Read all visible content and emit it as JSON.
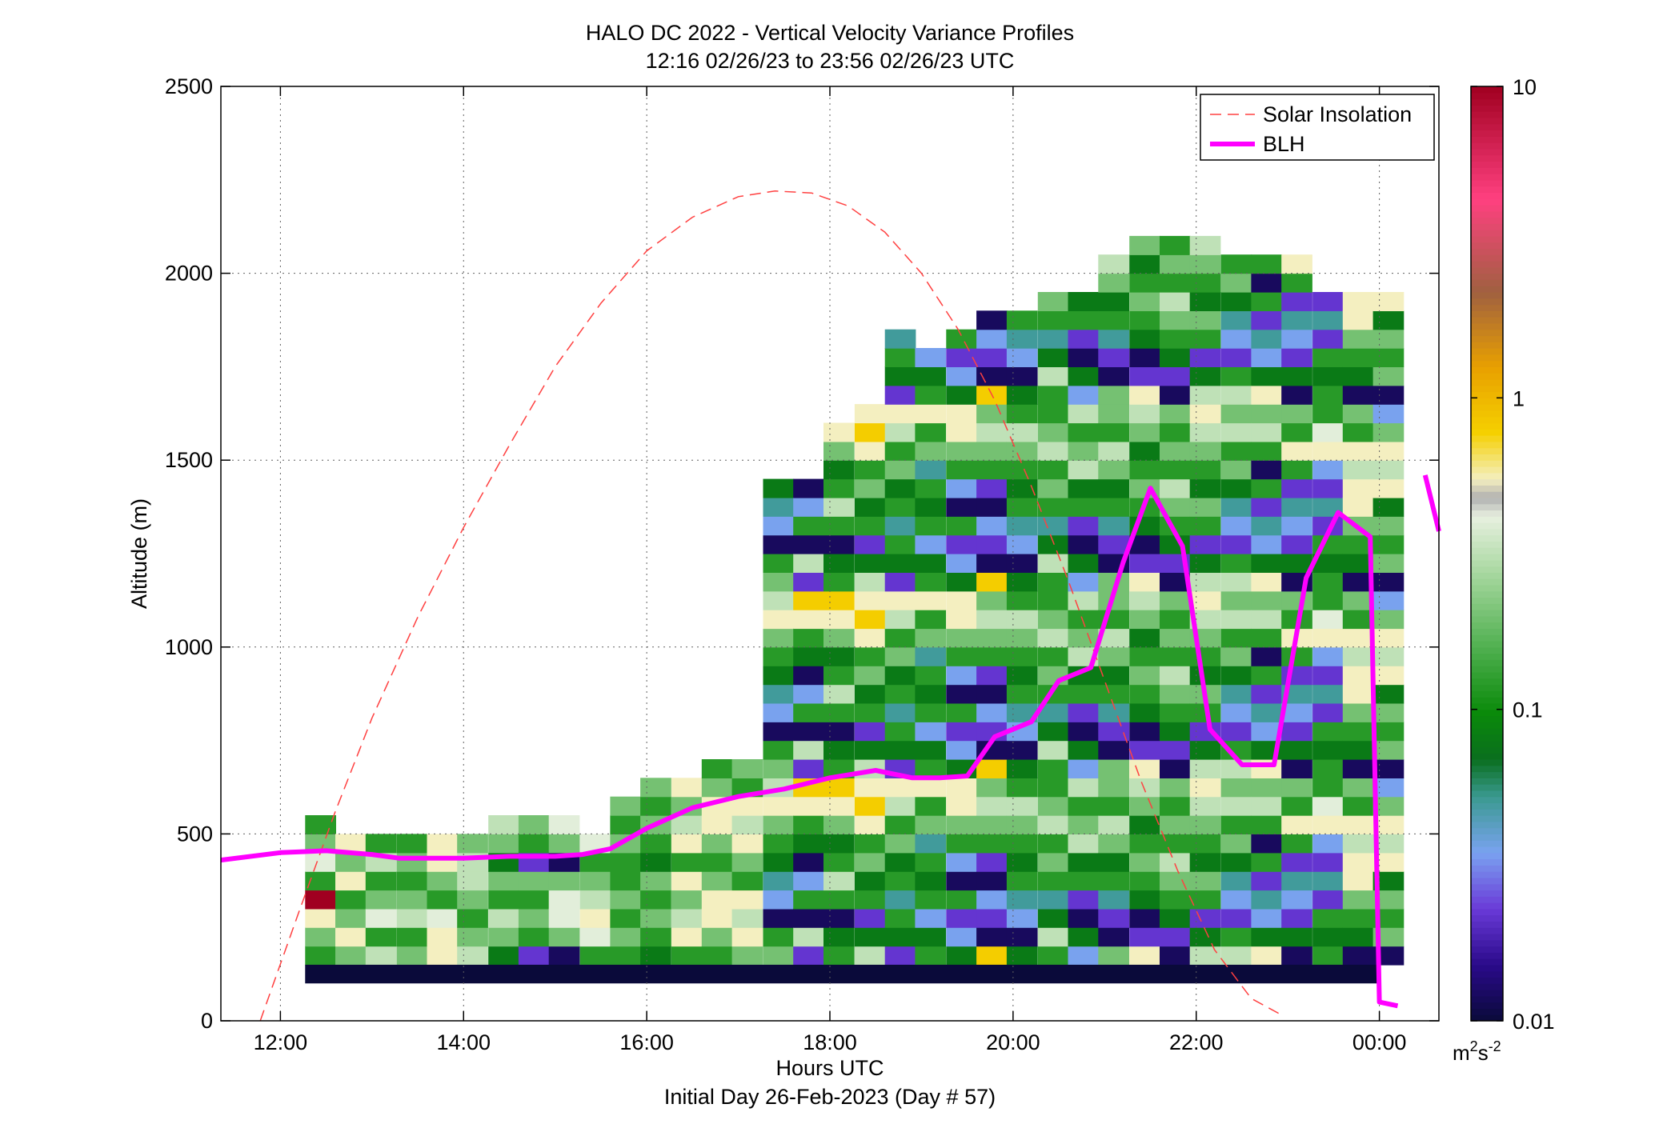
{
  "chart_data": {
    "type": "heatmap",
    "title": "HALO DC 2022 - Vertical Velocity Variance Profiles",
    "subtitle": "12:16 02/26/23 to 23:56 02/26/23  UTC",
    "xlabel": "Hours UTC",
    "xlabel2": "Initial Day 26-Feb-2023 (Day # 57)",
    "ylabel": "Altitude (m)",
    "x_range_hours": [
      11.35,
      24.65
    ],
    "ylim": [
      0,
      2500
    ],
    "x_ticks": [
      12,
      14,
      16,
      18,
      20,
      22,
      24
    ],
    "x_tick_labels": [
      "12:00",
      "14:00",
      "16:00",
      "18:00",
      "20:00",
      "22:00",
      "00:00"
    ],
    "y_ticks": [
      0,
      500,
      1000,
      1500,
      2000,
      2500
    ],
    "y_tick_labels": [
      "0",
      "500",
      "1000",
      "1500",
      "2000",
      "2500"
    ],
    "grid": true,
    "legend_position": "top-right",
    "legend": [
      {
        "label": "Solar Insolation",
        "color": "#ff4040",
        "style": "dashed"
      },
      {
        "label": "BLH",
        "color": "#ff00ff",
        "style": "solid"
      }
    ],
    "colorbar": {
      "scale": "log",
      "range": [
        0.01,
        10
      ],
      "tick_labels": [
        "10",
        "1",
        "0.1",
        "0.01"
      ],
      "unit": "m²s⁻²"
    },
    "heatmap_grid": {
      "x_start_hour": 12.27,
      "column_width_hours": 0.333,
      "y_bottom_m": 150,
      "row_height_m": 50,
      "value_unit": "m2 s-2 (log10)"
    },
    "heatmap_columns": [
      {
        "hour": 12.27,
        "top_m": 525,
        "class_pattern": "G L Y M G R L"
      },
      {
        "hour": 12.6,
        "top_m": 475,
        "class_pattern": "L Y L G Y"
      },
      {
        "hour": 12.93,
        "top_m": 475,
        "class_pattern": "W G R L G"
      },
      {
        "hour": 13.27,
        "top_m": 475,
        "class_pattern": "L G W L G"
      },
      {
        "hour": 13.6,
        "top_m": 475,
        "class_pattern": "Y Y R G L"
      },
      {
        "hour": 13.93,
        "top_m": 475,
        "class_pattern": "W L G L W"
      },
      {
        "hour": 14.27,
        "top_m": 525,
        "class_pattern": "D L W G L"
      },
      {
        "hour": 14.6,
        "top_m": 525,
        "class_pattern": "V G L G L"
      },
      {
        "hour": 14.93,
        "top_m": 525,
        "class_pattern": "N L R R L"
      },
      {
        "hour": 15.27,
        "top_m": 475,
        "class_pattern": "G R Y W L"
      },
      {
        "hour": 15.6,
        "top_m": 575,
        "class_pattern": "G L G L G"
      },
      {
        "hour": 15.93,
        "top_m": 625,
        "class_pattern": "D G L G L"
      },
      {
        "hour": 16.27,
        "top_m": 625,
        "class_pattern": "G Y W L Y"
      },
      {
        "hour": 16.6,
        "top_m": 675,
        "class_pattern": "G L Y Y L"
      },
      {
        "hour": 16.93,
        "top_m": 675,
        "class_pattern": "L Y W Y G"
      },
      {
        "hour": 17.27,
        "top_m": 1425,
        "class_pattern": "L G N B T D G L Y W"
      },
      {
        "hour": 17.6,
        "top_m": 1425,
        "class_pattern": "V W N G B N D G Y O"
      },
      {
        "hour": 17.93,
        "top_m": 1575,
        "class_pattern": "G D N G W G D L Y O"
      },
      {
        "hour": 18.27,
        "top_m": 1625,
        "class_pattern": "W D V G D L G Y O Y"
      },
      {
        "hour": 18.6,
        "top_m": 1825,
        "class_pattern": "V D G T G D L G W Y"
      },
      {
        "hour": 18.93,
        "top_m": 1775,
        "class_pattern": "G D B G D G T L G Y"
      },
      {
        "hour": 19.27,
        "top_m": 1825,
        "class_pattern": "D B V G N B G L Y Y"
      },
      {
        "hour": 19.6,
        "top_m": 1875,
        "class_pattern": "O N V B N V G L W L"
      },
      {
        "hour": 19.93,
        "top_m": 1875,
        "class_pattern": "D N B T G D G L W G"
      },
      {
        "hour": 20.27,
        "top_m": 1925,
        "class_pattern": "G W D T G L G W L G"
      },
      {
        "hour": 20.6,
        "top_m": 1925,
        "class_pattern": "B D N V G D W L G W"
      },
      {
        "hour": 20.93,
        "top_m": 2025,
        "class_pattern": "L N V T G D L W G L"
      },
      {
        "hour": 21.27,
        "top_m": 2075,
        "class_pattern": "Y V N D G L G D L W"
      },
      {
        "hour": 21.6,
        "top_m": 2075,
        "class_pattern": "N V D G L W G L G L"
      },
      {
        "hour": 21.93,
        "top_m": 2075,
        "class_pattern": "W D V G L D G L W Y"
      },
      {
        "hour": 22.27,
        "top_m": 2025,
        "class_pattern": "W G V B T D L G W L"
      },
      {
        "hour": 22.6,
        "top_m": 2025,
        "class_pattern": "Y D B T V G N G W L"
      },
      {
        "hour": 22.93,
        "top_m": 2025,
        "class_pattern": "N D V B T V G Y G L"
      },
      {
        "hour": 23.27,
        "top_m": 1925,
        "class_pattern": "G D G V T V B Y R G"
      },
      {
        "hour": 23.6,
        "top_m": 1925,
        "class_pattern": "N D G L Y Y W Y G L"
      },
      {
        "hour": 23.93,
        "top_m": 1925,
        "class_pattern": "N L G L D Y W Y L B"
      }
    ],
    "heatmap_classes": {
      "N": 0.012,
      "V": 0.022,
      "B": 0.035,
      "T": 0.05,
      "D": 0.08,
      "G": 0.12,
      "L": 0.2,
      "W": 0.32,
      "R": 0.4,
      "Y": 0.55,
      "O": 0.8
    },
    "bottom_band": {
      "value": 0.01,
      "altitude_range_m": [
        100,
        150
      ],
      "hour_range": [
        12.27,
        24.0
      ]
    },
    "series": [
      {
        "name": "BLH",
        "x": [
          11.35,
          12.0,
          12.5,
          13.0,
          13.3,
          14.0,
          14.5,
          15.0,
          15.3,
          15.6,
          16.0,
          16.5,
          17.0,
          17.5,
          18.0,
          18.5,
          18.9,
          19.2,
          19.5,
          19.8,
          20.2,
          20.5,
          20.85,
          21.2,
          21.5,
          21.85,
          22.15,
          22.5,
          22.85,
          23.2,
          23.55,
          23.9,
          24.0,
          24.2
        ],
        "y": [
          430,
          450,
          455,
          445,
          435,
          435,
          440,
          440,
          445,
          460,
          515,
          570,
          600,
          620,
          650,
          670,
          650,
          650,
          655,
          760,
          800,
          910,
          945,
          1225,
          1425,
          1270,
          780,
          685,
          685,
          1185,
          1360,
          1295,
          50,
          40
        ]
      },
      {
        "name": "BLH (next segment)",
        "x": [
          24.5,
          24.65
        ],
        "y": [
          1460,
          1310
        ]
      }
    ],
    "solar_insolation_curve": {
      "x": [
        11.78,
        12.2,
        12.6,
        13.0,
        13.5,
        14.0,
        14.5,
        15.0,
        15.5,
        16.0,
        16.5,
        17.0,
        17.4,
        17.8,
        18.2,
        18.6,
        19.0,
        19.4,
        19.8,
        20.2,
        20.6,
        21.0,
        21.4,
        21.8,
        22.2,
        22.6,
        22.9
      ],
      "y": [
        0,
        290,
        560,
        810,
        1080,
        1320,
        1540,
        1750,
        1920,
        2060,
        2150,
        2205,
        2220,
        2215,
        2180,
        2110,
        2000,
        1850,
        1660,
        1430,
        1180,
        910,
        640,
        400,
        190,
        60,
        20
      ]
    }
  }
}
